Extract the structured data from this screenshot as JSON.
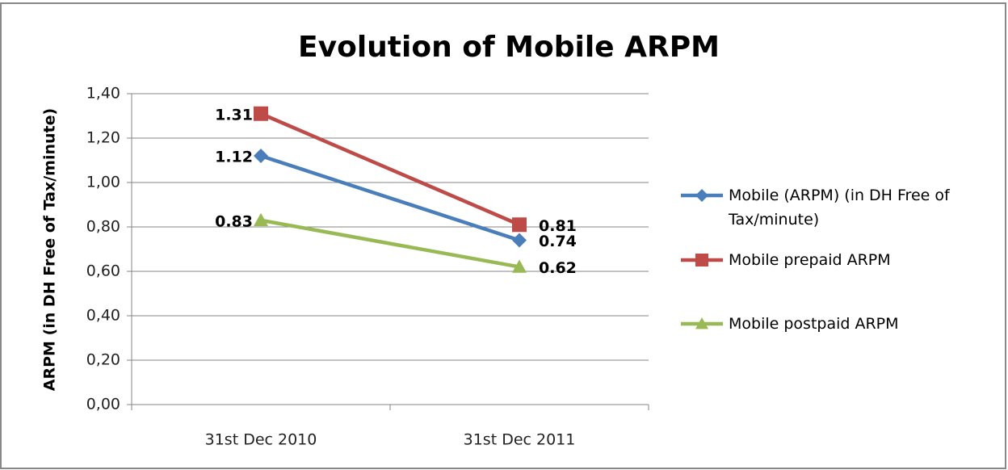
{
  "chart_data": {
    "type": "line",
    "title": "Evolution of Mobile ARPM",
    "y_label": "ARPM (in DH Free of Tax/minute)",
    "categories": [
      "31st Dec 2010",
      "31st Dec 2011"
    ],
    "series": [
      {
        "name": "Mobile (ARPM)  (in DH Free of Tax/minute)",
        "color": "#4a7ebb",
        "marker": "diamond",
        "values": [
          1.12,
          0.74
        ]
      },
      {
        "name": "Mobile prepaid ARPM",
        "color": "#be4b48",
        "marker": "square",
        "values": [
          1.31,
          0.81
        ]
      },
      {
        "name": "Mobile postpaid ARPM",
        "color": "#98b954",
        "marker": "triangle",
        "values": [
          0.83,
          0.62
        ]
      }
    ],
    "ylim": [
      0,
      1.4
    ],
    "yticks": [
      {
        "value": 0,
        "label": "0,00"
      },
      {
        "value": 0.2,
        "label": "0,20"
      },
      {
        "value": 0.4,
        "label": "0,40"
      },
      {
        "value": 0.6,
        "label": "0,60"
      },
      {
        "value": 0.8,
        "label": "0,80"
      },
      {
        "value": 1.0,
        "label": "1,00"
      },
      {
        "value": 1.2,
        "label": "1,20"
      },
      {
        "value": 1.4,
        "label": "1,40"
      }
    ],
    "grid": true,
    "legend": "right"
  }
}
